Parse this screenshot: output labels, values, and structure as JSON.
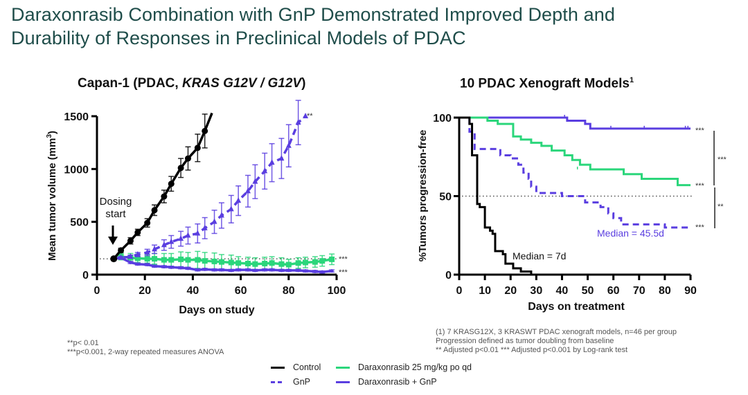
{
  "slide": {
    "title_line1": "Daraxonrasib Combination with GnP Demonstrated Improved Depth and",
    "title_line2": "Durability of Responses in Preclinical Models of PDAC"
  },
  "colors": {
    "control": "#000000",
    "gnp": "#5a3ee0",
    "daraxonrasib": "#2bd67b",
    "combo": "#5a3ee0",
    "title": "#1f4d4a"
  },
  "left_chart": {
    "title_prefix": "Capan-1 (PDAC, ",
    "title_gene": "KRAS  G12V / G12V",
    "title_suffix": ")",
    "dosing_label_1": "Dosing",
    "dosing_label_2": "start",
    "footnote_1": "**p< 0.01",
    "footnote_2": "***p<0.001, 2-way repeated measures ANOVA"
  },
  "right_chart": {
    "title": "10 PDAC Xenograft Models",
    "title_sup": "1",
    "median_control": "Median = 7d",
    "median_gnp": "Median = 45.5d",
    "bracket_top": "***",
    "bracket_bottom": "**",
    "footnote_1": "(1) 7 KRASG12X, 3 KRASWT PDAC xenograft models, n=46 per group",
    "footnote_2": "Progression defined as tumor doubling from baseline",
    "footnote_3": "** Adjusted p<0.01  *** Adjusted p<0.001 by Log-rank test"
  },
  "legend": {
    "control": "Control",
    "gnp": "GnP",
    "daraxonrasib": "Daraxonrasib 25 mg/kg po qd",
    "combo": "Daraxonrasib + GnP"
  },
  "chart_data": [
    {
      "type": "line",
      "title": "Capan-1 (PDAC, KRAS G12V / G12V)",
      "xlabel": "Days on study",
      "ylabel": "Mean tumor volume (mm3)",
      "xlim": [
        0,
        100
      ],
      "ylim": [
        0,
        1500
      ],
      "xticks": [
        0,
        20,
        40,
        60,
        80,
        100
      ],
      "yticks": [
        0,
        500,
        1000,
        1500
      ],
      "reference_line": 150,
      "annotations": [
        "Dosing start",
        "**",
        "***",
        "***"
      ],
      "series": [
        {
          "name": "Control",
          "style": "solid",
          "marker": "circle",
          "x": [
            7,
            10,
            14,
            17,
            21,
            24,
            28,
            31,
            35,
            38,
            42,
            45,
            48
          ],
          "y": [
            150,
            230,
            320,
            400,
            490,
            610,
            740,
            860,
            1010,
            1100,
            1200,
            1360,
            1530
          ],
          "err": [
            0,
            20,
            30,
            30,
            40,
            50,
            60,
            70,
            90,
            110,
            130,
            160,
            0
          ]
        },
        {
          "name": "GnP",
          "style": "dashed",
          "marker": "triangle",
          "x": [
            10,
            14,
            17,
            21,
            24,
            28,
            31,
            35,
            38,
            42,
            45,
            49,
            52,
            56,
            59,
            63,
            66,
            70,
            73,
            77,
            80,
            84,
            87
          ],
          "y": [
            160,
            170,
            190,
            210,
            240,
            280,
            310,
            340,
            370,
            390,
            440,
            500,
            560,
            620,
            700,
            790,
            880,
            980,
            1060,
            1100,
            1220,
            1440,
            1500
          ],
          "err": [
            10,
            15,
            20,
            30,
            40,
            50,
            60,
            70,
            80,
            90,
            100,
            110,
            120,
            130,
            140,
            150,
            160,
            170,
            180,
            190,
            200,
            210,
            0
          ]
        },
        {
          "name": "Daraxonrasib 25 mg/kg po qd",
          "style": "solid",
          "marker": "square",
          "x": [
            10,
            14,
            17,
            21,
            24,
            28,
            31,
            35,
            38,
            42,
            45,
            49,
            52,
            56,
            59,
            63,
            66,
            70,
            73,
            77,
            80,
            84,
            87,
            91,
            94,
            98
          ],
          "y": [
            170,
            160,
            155,
            150,
            150,
            140,
            140,
            145,
            140,
            140,
            130,
            125,
            120,
            115,
            110,
            105,
            100,
            105,
            110,
            100,
            95,
            110,
            115,
            120,
            130,
            145
          ],
          "err": [
            30,
            40,
            40,
            40,
            50,
            60,
            60,
            70,
            70,
            80,
            80,
            80,
            70,
            70,
            60,
            60,
            60,
            60,
            60,
            60,
            50,
            50,
            50,
            50,
            50,
            50
          ]
        },
        {
          "name": "Daraxonrasib + GnP",
          "style": "solid",
          "marker": "diamond",
          "x": [
            10,
            14,
            17,
            21,
            24,
            28,
            31,
            35,
            38,
            42,
            45,
            49,
            52,
            56,
            59,
            63,
            66,
            70,
            73,
            77,
            80,
            84,
            87,
            91,
            94,
            98
          ],
          "y": [
            160,
            115,
            100,
            95,
            80,
            75,
            70,
            65,
            60,
            45,
            50,
            45,
            45,
            40,
            45,
            45,
            40,
            45,
            45,
            40,
            40,
            40,
            35,
            30,
            25,
            35
          ],
          "err": [
            10,
            10,
            10,
            10,
            10,
            10,
            10,
            10,
            10,
            10,
            10,
            10,
            10,
            10,
            10,
            10,
            10,
            10,
            10,
            10,
            10,
            10,
            10,
            10,
            10,
            10
          ]
        }
      ]
    },
    {
      "type": "line",
      "subtype": "kaplan-meier",
      "title": "10 PDAC Xenograft Models",
      "xlabel": "Days on treatment",
      "ylabel": "%Tumors progression-free",
      "xlim": [
        0,
        90
      ],
      "ylim": [
        0,
        100
      ],
      "xticks": [
        0,
        10,
        20,
        30,
        40,
        50,
        60,
        70,
        80,
        90
      ],
      "yticks": [
        0,
        50,
        100
      ],
      "reference_line": 50,
      "annotations": [
        "Median = 7d",
        "Median = 45.5d",
        "***",
        "***",
        "***",
        "***",
        "**"
      ],
      "series": [
        {
          "name": "Control",
          "style": "solid",
          "steps": [
            [
              0,
              100
            ],
            [
              4,
              100
            ],
            [
              4,
              96
            ],
            [
              5,
              96
            ],
            [
              5,
              76
            ],
            [
              7,
              76
            ],
            [
              7,
              45
            ],
            [
              8,
              45
            ],
            [
              8,
              43
            ],
            [
              10,
              43
            ],
            [
              10,
              30
            ],
            [
              12,
              30
            ],
            [
              12,
              28
            ],
            [
              13,
              28
            ],
            [
              13,
              26
            ],
            [
              14,
              26
            ],
            [
              14,
              15
            ],
            [
              17,
              15
            ],
            [
              17,
              13
            ],
            [
              18,
              13
            ],
            [
              18,
              7
            ],
            [
              21,
              7
            ],
            [
              21,
              4
            ],
            [
              24,
              4
            ],
            [
              24,
              2
            ],
            [
              28,
              2
            ],
            [
              28,
              0
            ]
          ]
        },
        {
          "name": "GnP",
          "style": "dashed",
          "steps": [
            [
              0,
              100
            ],
            [
              4,
              100
            ],
            [
              4,
              91
            ],
            [
              6,
              91
            ],
            [
              6,
              80
            ],
            [
              10,
              80
            ],
            [
              10,
              80
            ],
            [
              16,
              80
            ],
            [
              16,
              76
            ],
            [
              20,
              76
            ],
            [
              20,
              74
            ],
            [
              23,
              74
            ],
            [
              23,
              70
            ],
            [
              25,
              70
            ],
            [
              25,
              65
            ],
            [
              27,
              65
            ],
            [
              27,
              61
            ],
            [
              28,
              61
            ],
            [
              28,
              56
            ],
            [
              30,
              56
            ],
            [
              30,
              52
            ],
            [
              40,
              52
            ],
            [
              40,
              50
            ],
            [
              49,
              50
            ],
            [
              49,
              46
            ],
            [
              55,
              46
            ],
            [
              55,
              43
            ],
            [
              58,
              43
            ],
            [
              58,
              39
            ],
            [
              60,
              39
            ],
            [
              60,
              36
            ],
            [
              63,
              36
            ],
            [
              63,
              32
            ],
            [
              80,
              32
            ],
            [
              80,
              30
            ],
            [
              90,
              30
            ]
          ]
        },
        {
          "name": "Daraxonrasib 25 mg/kg po qd",
          "style": "solid",
          "steps": [
            [
              0,
              100
            ],
            [
              11,
              100
            ],
            [
              11,
              98
            ],
            [
              15,
              98
            ],
            [
              15,
              96
            ],
            [
              21,
              96
            ],
            [
              21,
              88
            ],
            [
              24,
              88
            ],
            [
              24,
              86
            ],
            [
              28,
              86
            ],
            [
              28,
              84
            ],
            [
              32,
              84
            ],
            [
              32,
              82
            ],
            [
              36,
              82
            ],
            [
              36,
              79
            ],
            [
              41,
              79
            ],
            [
              41,
              76
            ],
            [
              44,
              76
            ],
            [
              44,
              73
            ],
            [
              47,
              73
            ],
            [
              47,
              70
            ],
            [
              51,
              70
            ],
            [
              51,
              67
            ],
            [
              64,
              67
            ],
            [
              64,
              64
            ],
            [
              71,
              64
            ],
            [
              71,
              61
            ],
            [
              85,
              61
            ],
            [
              85,
              57
            ],
            [
              90,
              57
            ]
          ]
        },
        {
          "name": "Daraxonrasib + GnP",
          "style": "solid",
          "steps": [
            [
              0,
              100
            ],
            [
              42,
              100
            ],
            [
              42,
              98
            ],
            [
              49,
              98
            ],
            [
              49,
              96
            ],
            [
              51,
              96
            ],
            [
              51,
              93
            ],
            [
              90,
              93
            ]
          ]
        }
      ]
    }
  ]
}
